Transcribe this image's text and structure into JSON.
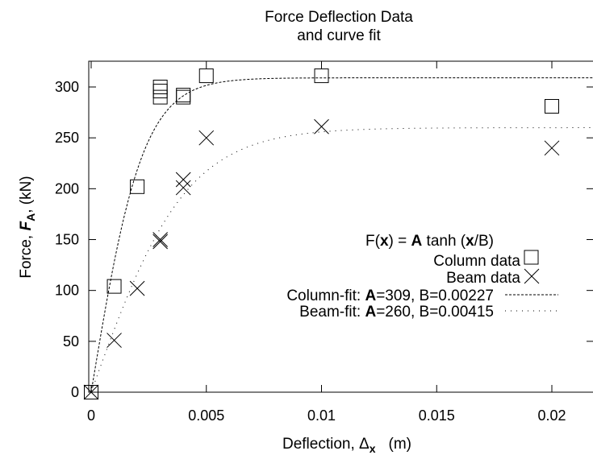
{
  "chart_data": {
    "type": "scatter",
    "title": "Force Deflection Data",
    "subtitle": "and curve fit",
    "xlabel": {
      "prefix": "Deflection, Δ",
      "subscript": "x",
      "suffix": "(m)"
    },
    "ylabel": {
      "prefix": "Force, ",
      "var": "F",
      "subscript": "A",
      "suffix": ", (kN)"
    },
    "xlim": [
      0,
      0.022
    ],
    "ylim": [
      0,
      325
    ],
    "x_ticks": [
      0,
      0.005,
      0.01,
      0.015,
      0.02
    ],
    "x_tick_labels": [
      "0",
      "0.005",
      "0.01",
      "0.015",
      "0.02"
    ],
    "y_ticks": [
      0,
      50,
      100,
      150,
      200,
      250,
      300
    ],
    "y_tick_labels": [
      "0",
      "50",
      "100",
      "150",
      "200",
      "250",
      "300"
    ],
    "grid": false,
    "legend_position": "right",
    "legend_header": {
      "prefix": "F(",
      "x": "x",
      "mid": ") = ",
      "A": "A",
      "tanh": " tanh (",
      "x2": "x",
      "end": "/B)"
    },
    "series": [
      {
        "name": "Column data",
        "marker": "square",
        "x": [
          0,
          0.001,
          0.002,
          0.003,
          0.003,
          0.003,
          0.004,
          0.004,
          0.005,
          0.01,
          0.02
        ],
        "y": [
          0,
          104,
          202,
          290,
          296,
          300,
          290,
          292,
          311,
          311,
          281
        ]
      },
      {
        "name": "Beam data",
        "marker": "x",
        "x": [
          0,
          0.001,
          0.002,
          0.003,
          0.003,
          0.004,
          0.004,
          0.005,
          0.01,
          0.02
        ],
        "y": [
          0,
          51,
          102,
          148,
          150,
          201,
          209,
          250,
          261,
          240
        ]
      },
      {
        "name": {
          "prefix": "Column-fit: ",
          "bold": "A",
          "rest": "=309, B=0.00227"
        },
        "style": "dashed",
        "fit": {
          "A": 309,
          "B": 0.00227
        }
      },
      {
        "name": {
          "prefix": "Beam-fit: ",
          "bold": "A",
          "rest": "=260, B=0.00415"
        },
        "style": "dotted",
        "fit": {
          "A": 260,
          "B": 0.00415
        }
      }
    ]
  }
}
